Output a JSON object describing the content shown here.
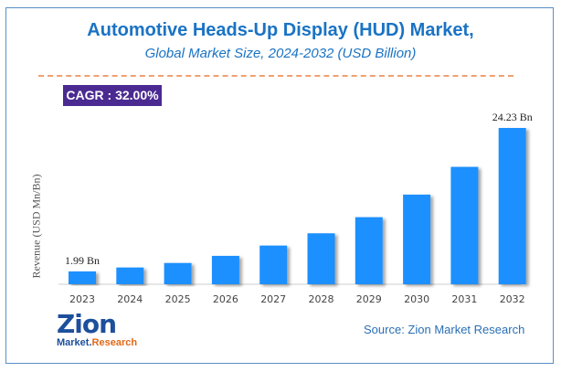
{
  "chart_data": {
    "type": "bar",
    "title": "Automotive Heads-Up Display (HUD) Market,",
    "subtitle": "Global Market Size, 2024-2032 (USD Billion)",
    "xlabel": "",
    "ylabel": "Revenue (USD Mn/Bn)",
    "categories": [
      "2023",
      "2024",
      "2025",
      "2026",
      "2027",
      "2028",
      "2029",
      "2030",
      "2031",
      "2032"
    ],
    "values": [
      1.99,
      2.6,
      3.3,
      4.4,
      6.0,
      7.9,
      10.4,
      13.9,
      18.2,
      24.23
    ],
    "data_labels": [
      {
        "index": 0,
        "text": "1.99 Bn"
      },
      {
        "index": 9,
        "text": "24.23 Bn"
      }
    ],
    "ylim": [
      0,
      24.23
    ],
    "grid": false,
    "bar_color": "#1e90ff"
  },
  "cagr_label": "CAGR : 32.00%",
  "logo": {
    "main": "Zion",
    "sub_left": "Market",
    "sub_right": "Research"
  },
  "source": "Source: Zion Market Research"
}
